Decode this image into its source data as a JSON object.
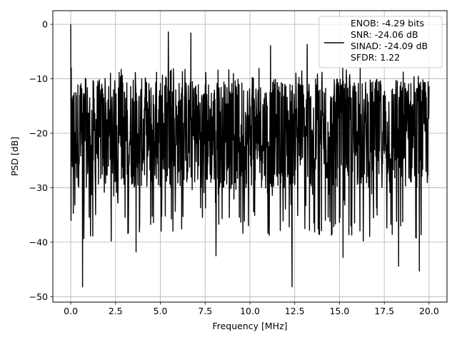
{
  "chart_data": {
    "type": "line",
    "xlabel": "Frequency [MHz]",
    "ylabel": "PSD [dB]",
    "xlim": [
      -1.0,
      21.0
    ],
    "ylim": [
      -51.0,
      2.5
    ],
    "x_ticks": [
      0.0,
      2.5,
      5.0,
      7.5,
      10.0,
      12.5,
      15.0,
      17.5,
      20.0
    ],
    "x_tick_labels": [
      "0.0",
      "2.5",
      "5.0",
      "7.5",
      "10.0",
      "12.5",
      "15.0",
      "17.5",
      "20.0"
    ],
    "y_ticks": [
      0,
      -10,
      -20,
      -30,
      -40,
      -50
    ],
    "y_tick_labels": [
      "0",
      "−10",
      "−20",
      "−30",
      "−40",
      "−50"
    ],
    "grid": true,
    "legend_position": "top-right",
    "legend": [
      "ENOB: -4.29 bits",
      "SNR: -24.06 dB",
      "SINAD: -24.09 dB",
      "SFDR: 1.22"
    ],
    "series": [
      {
        "color": "#000000",
        "x_range": [
          0.0,
          20.0
        ],
        "peak": {
          "x": 0.0,
          "y": 0.0
        },
        "typical_upper": -10,
        "typical_lower": -30,
        "notable_minima": [
          {
            "x": 0.66,
            "y": -48.2
          },
          {
            "x": 3.65,
            "y": -41.8
          },
          {
            "x": 8.1,
            "y": -42.5
          },
          {
            "x": 12.35,
            "y": -48.2
          },
          {
            "x": 15.2,
            "y": -42.8
          },
          {
            "x": 18.3,
            "y": -44.4
          },
          {
            "x": 19.45,
            "y": -45.3
          }
        ],
        "notable_maxima": [
          {
            "x": 5.45,
            "y": -1.4
          },
          {
            "x": 6.7,
            "y": -1.6
          },
          {
            "x": 11.15,
            "y": -3.9
          },
          {
            "x": 13.2,
            "y": -3.7
          }
        ]
      }
    ]
  }
}
